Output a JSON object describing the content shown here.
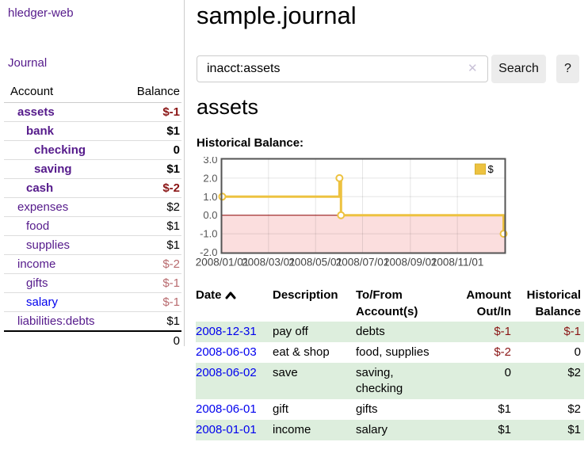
{
  "app": {
    "title": "hledger-web"
  },
  "colors": {
    "accent_purple": "#551a8b",
    "link_blue": "#0000ee",
    "negative_strong": "#8a1515",
    "negative_soft": "#b86a6e",
    "row_highlight_green": "#ddeedd",
    "chart_line_gold": "#edc240",
    "chart_negative_region": "#fbdede",
    "chart_zero_line": "#8b0000",
    "chart_border": "#545454"
  },
  "sidebar": {
    "nav": {
      "journal": "Journal"
    },
    "table": {
      "headers": {
        "account": "Account",
        "balance": "Balance"
      },
      "rows": [
        {
          "account": "assets",
          "balance": "$-1",
          "depth": 1,
          "bold": true,
          "visited": true
        },
        {
          "account": "bank",
          "balance": "$1",
          "depth": 2,
          "bold": true,
          "visited": true
        },
        {
          "account": "checking",
          "balance": "0",
          "depth": 3,
          "bold": true,
          "visited": true
        },
        {
          "account": "saving",
          "balance": "$1",
          "depth": 3,
          "bold": true,
          "visited": true
        },
        {
          "account": "cash",
          "balance": "$-2",
          "depth": 2,
          "bold": true,
          "visited": true
        },
        {
          "account": "expenses",
          "balance": "$2",
          "depth": 1,
          "bold": false,
          "visited": true
        },
        {
          "account": "food",
          "balance": "$1",
          "depth": 2,
          "bold": false,
          "visited": true
        },
        {
          "account": "supplies",
          "balance": "$1",
          "depth": 2,
          "bold": false,
          "visited": true
        },
        {
          "account": "income",
          "balance": "$-2",
          "depth": 1,
          "bold": false,
          "visited": true
        },
        {
          "account": "gifts",
          "balance": "$-1",
          "depth": 2,
          "bold": false,
          "visited": true
        },
        {
          "account": "salary",
          "balance": "$-1",
          "depth": 2,
          "bold": false,
          "visited": false
        },
        {
          "account": "liabilities:debts",
          "balance": "$1",
          "depth": 1,
          "bold": false,
          "visited": true
        }
      ],
      "total": "0"
    }
  },
  "main": {
    "title": "sample.journal",
    "search": {
      "value": "inacct:assets",
      "clear_icon": "✕",
      "button_label": "Search",
      "help_label": "?"
    },
    "heading": "assets"
  },
  "chart_data": {
    "type": "line",
    "title": "Historical Balance:",
    "step": true,
    "series": [
      {
        "name": "$",
        "color": "#edc240",
        "points": [
          [
            "2008/01/01",
            1.0
          ],
          [
            "2008/06/01",
            2.0
          ],
          [
            "2008/06/03",
            0.0
          ],
          [
            "2008/12/31",
            -1.0
          ]
        ]
      }
    ],
    "xlim": [
      "2008/01/01",
      "2009/01/01"
    ],
    "ylim": [
      -2.0,
      3.0
    ],
    "yticks": [
      3.0,
      2.0,
      1.0,
      0.0,
      -1.0,
      -2.0
    ],
    "xticks": [
      "2008/01/01",
      "2008/03/01",
      "2008/05/01",
      "2008/07/01",
      "2008/09/01",
      "2008/11/01"
    ],
    "grid": true,
    "legend_position": "top-right",
    "negative_region_fill": "#fbdede",
    "zero_line_color": "#8b0000",
    "border_color": "#545454",
    "tick_label_color": "#545454"
  },
  "register": {
    "headers": {
      "date": "Date",
      "description": "Description",
      "accounts": "To/From Account(s)",
      "amount": "Amount Out/In",
      "balance": "Historical Balance"
    },
    "sort_icon": "chevron-up",
    "rows": [
      {
        "date": "2008-12-31",
        "description": "pay off",
        "accounts": "debts",
        "amount": "$-1",
        "balance": "$-1"
      },
      {
        "date": "2008-06-03",
        "description": "eat & shop",
        "accounts": "food, supplies",
        "amount": "$-2",
        "balance": "0"
      },
      {
        "date": "2008-06-02",
        "description": "save",
        "accounts": "saving, checking",
        "amount": "0",
        "balance": "$2"
      },
      {
        "date": "2008-06-01",
        "description": "gift",
        "accounts": "gifts",
        "amount": "$1",
        "balance": "$2"
      },
      {
        "date": "2008-01-01",
        "description": "income",
        "accounts": "salary",
        "amount": "$1",
        "balance": "$1"
      }
    ]
  }
}
